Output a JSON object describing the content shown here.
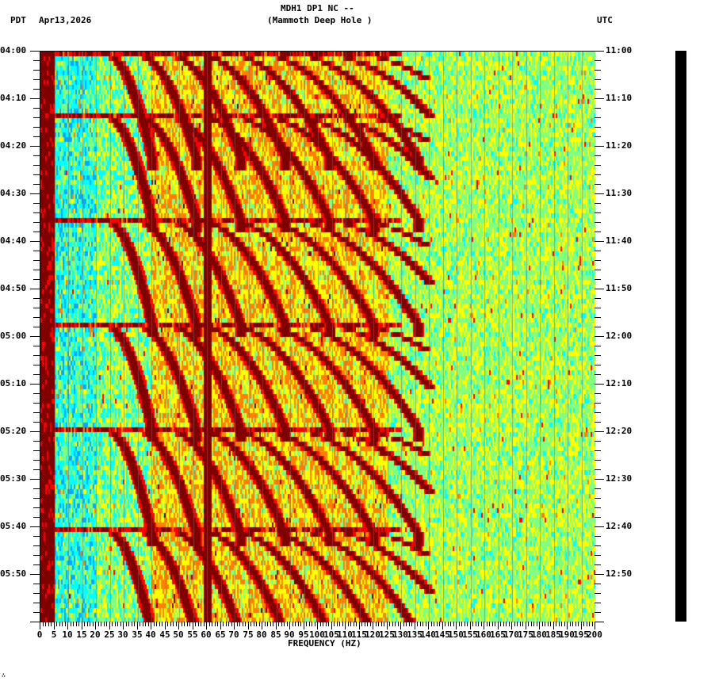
{
  "header": {
    "station": "MDH1 DP1 NC --",
    "site": "(Mammoth Deep Hole )",
    "left_tz": "PDT",
    "date": "Apr13,2026",
    "right_tz": "UTC"
  },
  "footer_mark": "∴",
  "chart_data": {
    "type": "heatmap",
    "title": "MDH1 DP1 NC -- (Mammoth Deep Hole )",
    "xlabel": "FREQUENCY (HZ)",
    "ylabel_left": "PDT",
    "ylabel_right": "UTC",
    "date": "Apr13,2026",
    "xlim": [
      0,
      200
    ],
    "x_ticks": [
      "0",
      "5",
      "10",
      "15",
      "20",
      "25",
      "30",
      "35",
      "40",
      "45",
      "50",
      "55",
      "60",
      "65",
      "70",
      "75",
      "80",
      "85",
      "90",
      "95",
      "100",
      "105",
      "110",
      "115",
      "120",
      "125",
      "130",
      "135",
      "140",
      "145",
      "150",
      "155",
      "160",
      "165",
      "170",
      "175",
      "180",
      "185",
      "190",
      "195",
      "200"
    ],
    "y_ticks_left": [
      "04:00",
      "04:10",
      "04:20",
      "04:30",
      "04:40",
      "04:50",
      "05:00",
      "05:10",
      "05:20",
      "05:30",
      "05:40",
      "05:50"
    ],
    "y_ticks_right": [
      "11:00",
      "11:10",
      "11:20",
      "11:30",
      "11:40",
      "11:50",
      "12:00",
      "12:10",
      "12:20",
      "12:30",
      "12:40",
      "12:50"
    ],
    "time_range_pdt": [
      "04:00",
      "06:00"
    ],
    "colormap": [
      "#0000ff",
      "#00aaff",
      "#00ffff",
      "#80ff80",
      "#ffff00",
      "#ff8000",
      "#ff0000",
      "#800000"
    ],
    "features": {
      "persistent_line_hz": 60,
      "low_freq_high_energy_hz": [
        0,
        5
      ],
      "chirp_sweep_period_min": 13,
      "chirp_sweep_start_times_pdt": [
        "04:00",
        "04:13",
        "04:35",
        "04:57",
        "05:19",
        "05:40"
      ],
      "chirp_harmonic_count": 9,
      "upper_band_hz": [
        125,
        200
      ],
      "upper_band_level": "moderate"
    }
  }
}
